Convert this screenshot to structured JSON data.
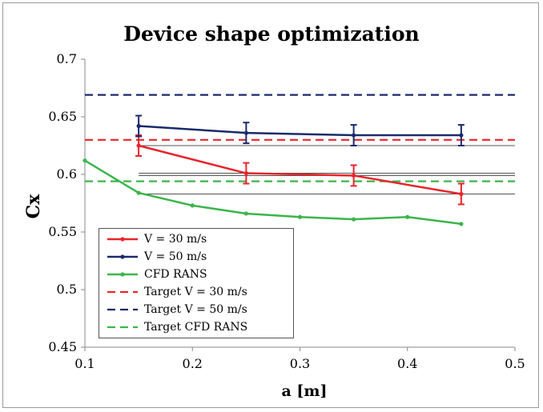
{
  "chart_data": {
    "type": "line",
    "title": "Device shape optimization",
    "xlabel": "a [m]",
    "ylabel": "Cx",
    "xlim": [
      0.1,
      0.5
    ],
    "ylim": [
      0.45,
      0.7
    ],
    "x_ticks": [
      "0.1",
      "0.2",
      "0.3",
      "0.4",
      "0.5"
    ],
    "y_ticks": [
      "0.45",
      "0.5",
      "0.55",
      "0.6",
      "0.65",
      "0.7"
    ],
    "grid": false,
    "legend_position": "bottom-left",
    "series": [
      {
        "name": "V = 30 m/s",
        "color": "#e8242a",
        "style": "solid",
        "markers": true,
        "x": [
          0.15,
          0.25,
          0.35,
          0.45
        ],
        "y": [
          0.625,
          0.601,
          0.599,
          0.583
        ],
        "error": [
          0.009,
          0.009,
          0.009,
          0.009
        ]
      },
      {
        "name": "V = 50 m/s",
        "color": "#1b2a6b",
        "style": "solid",
        "markers": true,
        "x": [
          0.15,
          0.25,
          0.35,
          0.45
        ],
        "y": [
          0.642,
          0.636,
          0.634,
          0.634
        ],
        "error": [
          0.009,
          0.009,
          0.009,
          0.009
        ]
      },
      {
        "name": "CFD RANS",
        "color": "#3cb54a",
        "style": "solid",
        "markers": true,
        "x": [
          0.1,
          0.15,
          0.2,
          0.25,
          0.3,
          0.35,
          0.4,
          0.45
        ],
        "y": [
          0.612,
          0.584,
          0.573,
          0.566,
          0.563,
          0.561,
          0.563,
          0.557
        ]
      },
      {
        "name": "Target V = 30 m/s",
        "color": "#e8242a",
        "style": "dashed",
        "y_constant": 0.63
      },
      {
        "name": "Target V = 50 m/s",
        "color": "#1b2a6b",
        "style": "dashed",
        "y_constant": 0.669
      },
      {
        "name": "Target CFD RANS",
        "color": "#3cb54a",
        "style": "dashed",
        "y_constant": 0.594
      }
    ],
    "reference_lines": {
      "color": "#555555",
      "x_range": [
        0.15,
        0.5
      ],
      "y": [
        0.625,
        0.601,
        0.599,
        0.583
      ]
    }
  }
}
